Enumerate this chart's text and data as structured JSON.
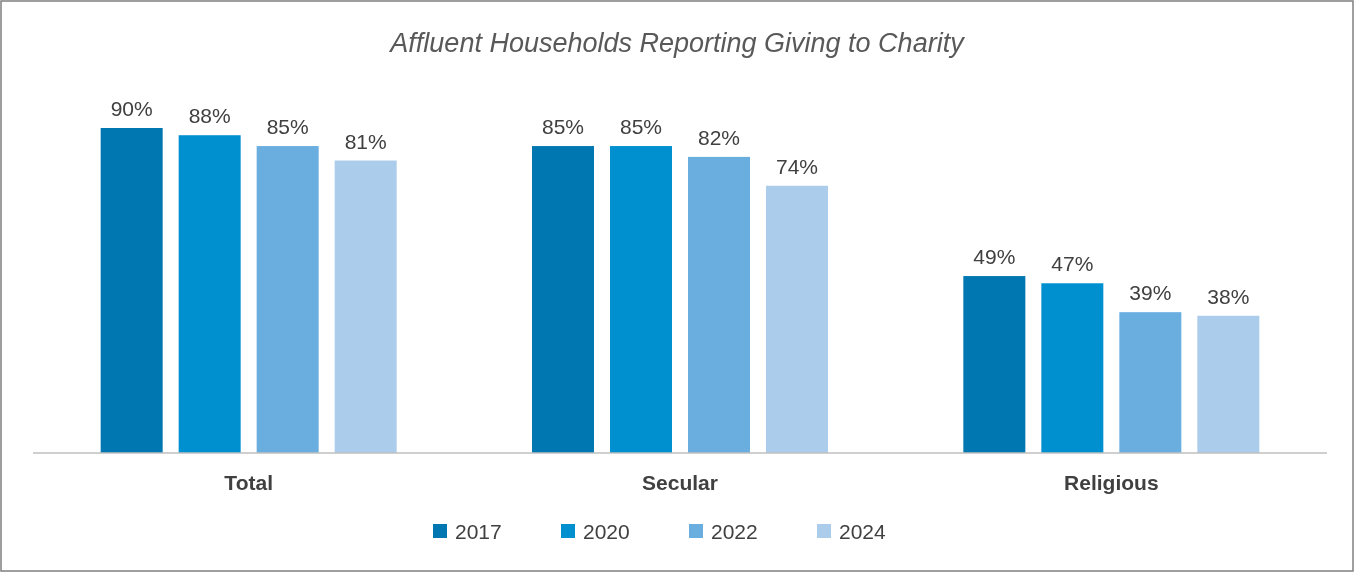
{
  "chart_data": {
    "type": "bar",
    "title": "Affluent Households Reporting Giving to Charity",
    "categories": [
      "Total",
      "Secular",
      "Religious"
    ],
    "series": [
      {
        "name": "2017",
        "color": "#0077b0",
        "values": [
          90,
          85,
          49
        ],
        "value_labels": [
          "90%",
          "85%",
          "49%"
        ]
      },
      {
        "name": "2020",
        "color": "#0090d0",
        "values": [
          88,
          85,
          47
        ],
        "value_labels": [
          "88%",
          "85%",
          "47%"
        ]
      },
      {
        "name": "2022",
        "color": "#6aaee0",
        "values": [
          85,
          82,
          39
        ],
        "value_labels": [
          "85%",
          "82%",
          "39%"
        ]
      },
      {
        "name": "2024",
        "color": "#abcdeb",
        "values": [
          81,
          74,
          38
        ],
        "value_labels": [
          "81%",
          "74%",
          "38%"
        ]
      }
    ],
    "tick_labels": "x",
    "legend": "bottom"
  }
}
